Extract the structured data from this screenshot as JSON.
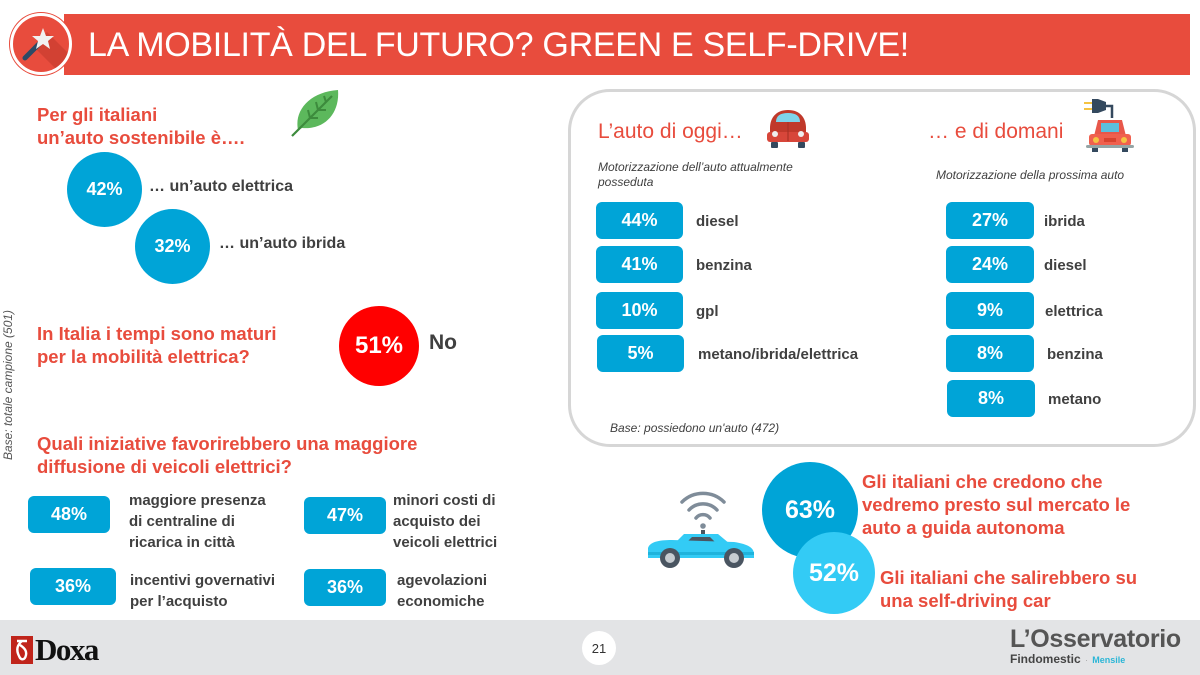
{
  "header": {
    "title": "LA MOBILITÀ DEL FUTURO? GREEN E SELF-DRIVE!",
    "icon": "magic-wand-icon"
  },
  "sustainable": {
    "heading_line1": "Per gli italiani",
    "heading_line2": "un’auto sostenibile è….",
    "icon": "leaf-icon",
    "items": [
      {
        "value": "42%",
        "label": "… un’auto elettrica"
      },
      {
        "value": "32%",
        "label": "… un’auto ibrida"
      }
    ]
  },
  "base_note": "Base: totale campione (501)",
  "maturity": {
    "question_line1": "In Italia i tempi sono maturi",
    "question_line2": "per la mobilità elettrica?",
    "value": "51%",
    "answer": "No",
    "color": "#ff0000"
  },
  "initiatives": {
    "heading_line1": "Quali iniziative favorirebbero una maggiore",
    "heading_line2": "diffusione di veicoli elettrici?",
    "items": [
      {
        "value": "48%",
        "lines": [
          "maggiore presenza",
          "di centraline di",
          "ricarica in città"
        ]
      },
      {
        "value": "47%",
        "lines": [
          "minori costi di",
          "acquisto dei",
          "veicoli elettrici"
        ]
      },
      {
        "value": "36%",
        "lines": [
          "incentivi governativi",
          "per l’acquisto"
        ]
      },
      {
        "value": "36%",
        "lines": [
          "agevolazioni",
          "economiche"
        ]
      }
    ]
  },
  "today": {
    "heading": "L’auto di oggi…",
    "icon": "vintage-car-icon",
    "subtitle_line1": "Motorizzazione dell’auto attualmente",
    "subtitle_line2": "posseduta",
    "items": [
      {
        "value": "44%",
        "label": "diesel"
      },
      {
        "value": "41%",
        "label": "benzina"
      },
      {
        "value": "10%",
        "label": "gpl"
      },
      {
        "value": "5%",
        "label": "metano/ibrida/elettrica"
      }
    ],
    "base_note": "Base: possiedono un'auto  (472)"
  },
  "tomorrow": {
    "heading": "… e di domani",
    "icon": "electric-car-plug-icon",
    "subtitle": "Motorizzazione della prossima auto",
    "items": [
      {
        "value": "27%",
        "label": "ibrida"
      },
      {
        "value": "24%",
        "label": "diesel"
      },
      {
        "value": "9%",
        "label": "elettrica"
      },
      {
        "value": "8%",
        "label": "benzina"
      },
      {
        "value": "8%",
        "label": "metano"
      }
    ]
  },
  "self_drive": {
    "icon": "self-driving-car-icon",
    "items": [
      {
        "value": "63%",
        "lines": [
          "Gli italiani che credono che",
          "vedremo presto sul mercato le",
          "auto a guida autonoma"
        ],
        "color": "#00a4d7"
      },
      {
        "value": "52%",
        "lines": [
          "Gli italiani che salirebbero su",
          "una self-driving car"
        ],
        "color": "#33cbf5"
      }
    ]
  },
  "footer": {
    "page_number": "21",
    "left_logo": "Doxa",
    "right_logo_title": "L’Osservatorio",
    "right_logo_brand": "Findomestic",
    "right_logo_tag": "Mensile"
  },
  "colors": {
    "accent_red": "#e84c3d",
    "blue": "#00a4d7",
    "light_blue": "#33cbf5",
    "text_dark": "#404040"
  }
}
